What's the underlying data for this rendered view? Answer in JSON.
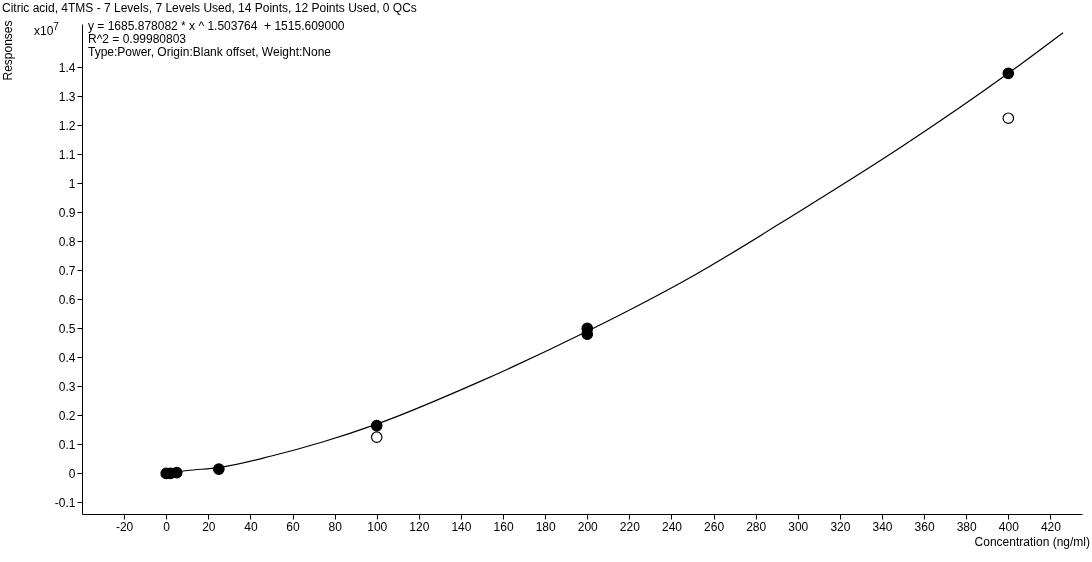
{
  "chart_data": {
    "type": "scatter",
    "title": "Citric acid, 4TMS - 7 Levels, 7 Levels Used, 14 Points, 12 Points Used, 0 QCs",
    "xlabel": "Concentration (ng/ml)",
    "ylabel": "Responses",
    "annotations": [
      "x10$^{7}$",
      "y = 1685.878082 * x ^ 1.503764  + 1515.609000",
      "R^2 = 0.99980803",
      "Type:Power, Origin:Blank offset, Weight:None"
    ],
    "x": [
      0,
      2,
      5,
      25,
      100,
      200,
      200,
      400
    ],
    "series": [
      {
        "color": "#000000",
        "values": [
          0,
          0,
          0.003,
          0.015,
          0.165,
          0.5,
          0.48,
          1.38
        ]
      },
      {
        "color": "#ffffff",
        "x": [
          100,
          400
        ],
        "values": [
          0.125,
          1.225
        ]
      },
      {
        "type": "line",
        "marker": "none",
        "color": "#000000",
        "x": [
          0,
          10,
          25,
          50,
          75,
          100,
          150,
          200,
          250,
          300,
          350,
          400,
          426
        ],
        "values": [
          0,
          0.01,
          0.02,
          0.06,
          0.11,
          0.17,
          0.32,
          0.49,
          0.68,
          0.9,
          1.13,
          1.38,
          1.52
        ]
      }
    ],
    "xlim": [
      -40,
      435
    ],
    "xticks": [
      -20,
      0,
      20,
      40,
      60,
      80,
      100,
      120,
      140,
      160,
      180,
      200,
      220,
      240,
      260,
      280,
      300,
      320,
      340,
      360,
      380,
      400,
      420
    ],
    "ylim": [
      -0.14,
      1.55
    ],
    "yticks": [
      -0.1,
      0,
      0.1,
      0.2,
      0.3,
      0.4,
      0.5,
      0.6,
      0.7,
      0.8,
      0.9,
      1,
      1.1,
      1.2,
      1.3,
      1.4
    ],
    "grid": false,
    "marker": "circle"
  }
}
